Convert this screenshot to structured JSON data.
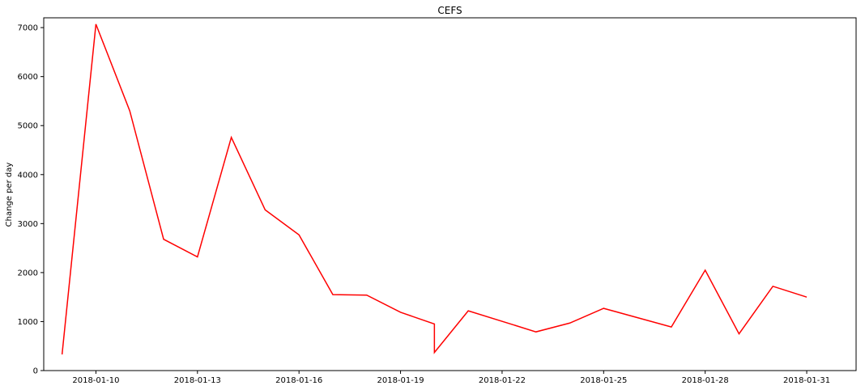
{
  "chart_data": {
    "type": "line",
    "title": "CEFS",
    "xlabel": "",
    "ylabel": "Change per day",
    "x_axis_type": "date",
    "xlim": [
      "2018-01-08 11:00",
      "2018-02-01 11:00"
    ],
    "ylim": [
      0,
      7200
    ],
    "x_ticks": [
      "2018-01-10",
      "2018-01-13",
      "2018-01-16",
      "2018-01-19",
      "2018-01-22",
      "2018-01-25",
      "2018-01-28",
      "2018-01-31"
    ],
    "y_ticks": [
      0,
      1000,
      2000,
      3000,
      4000,
      5000,
      6000,
      7000
    ],
    "grid": false,
    "legend": "none",
    "series": [
      {
        "color": "#ff0000",
        "points": [
          {
            "x": "2018-01-09",
            "y": 330
          },
          {
            "x": "2018-01-10",
            "y": 7070
          },
          {
            "x": "2018-01-11",
            "y": 5300
          },
          {
            "x": "2018-01-12",
            "y": 2680
          },
          {
            "x": "2018-01-13",
            "y": 2320
          },
          {
            "x": "2018-01-14",
            "y": 4760
          },
          {
            "x": "2018-01-15",
            "y": 3280
          },
          {
            "x": "2018-01-16",
            "y": 2770
          },
          {
            "x": "2018-01-17",
            "y": 1550
          },
          {
            "x": "2018-01-18",
            "y": 1540
          },
          {
            "x": "2018-01-19",
            "y": 1190
          },
          {
            "x": "2018-01-20",
            "y": 950
          },
          {
            "x": "2018-01-20",
            "y": 370
          },
          {
            "x": "2018-01-21",
            "y": 1220
          },
          {
            "x": "2018-01-23",
            "y": 790
          },
          {
            "x": "2018-01-24",
            "y": 970
          },
          {
            "x": "2018-01-25",
            "y": 1270
          },
          {
            "x": "2018-01-27",
            "y": 890
          },
          {
            "x": "2018-01-28",
            "y": 2050
          },
          {
            "x": "2018-01-29",
            "y": 750
          },
          {
            "x": "2018-01-30",
            "y": 1720
          },
          {
            "x": "2018-01-31",
            "y": 1500
          }
        ]
      }
    ]
  }
}
